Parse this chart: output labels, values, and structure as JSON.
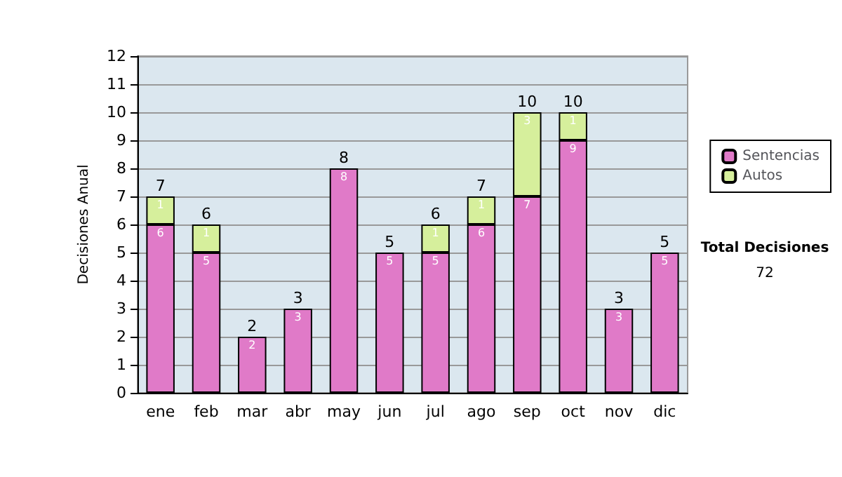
{
  "chart_data": {
    "type": "bar",
    "stacked": true,
    "ylabel": "Decisiones Anual",
    "categories": [
      "ene",
      "feb",
      "mar",
      "abr",
      "may",
      "jun",
      "jul",
      "ago",
      "sep",
      "oct",
      "nov",
      "dic"
    ],
    "series": [
      {
        "name": "Sentencias",
        "color": "#e07ac8",
        "values": [
          6,
          5,
          2,
          3,
          8,
          5,
          5,
          6,
          7,
          9,
          3,
          5
        ],
        "value_labels": [
          "6",
          "5",
          "2",
          "3",
          "8",
          "5",
          "5",
          "6",
          "7",
          "9",
          "3",
          "5"
        ]
      },
      {
        "name": "Autos",
        "color": "#d6ef9c",
        "values": [
          1,
          1,
          0,
          0,
          0,
          0,
          1,
          1,
          3,
          1,
          0,
          0
        ],
        "value_labels": [
          "1",
          "1",
          null,
          null,
          null,
          null,
          "1",
          "1",
          "3",
          "1",
          null,
          null
        ]
      }
    ],
    "totals": [
      "7",
      "6",
      "2",
      "3",
      "8",
      "5",
      "6",
      "7",
      "10",
      "10",
      "3",
      "5"
    ],
    "ylim": [
      0,
      12
    ],
    "yticks": [
      0,
      1,
      2,
      3,
      4,
      5,
      6,
      7,
      8,
      9,
      10,
      11,
      12
    ],
    "grid": "y",
    "legend": "right",
    "annotations": [
      "Total Decisiones",
      "72"
    ]
  }
}
